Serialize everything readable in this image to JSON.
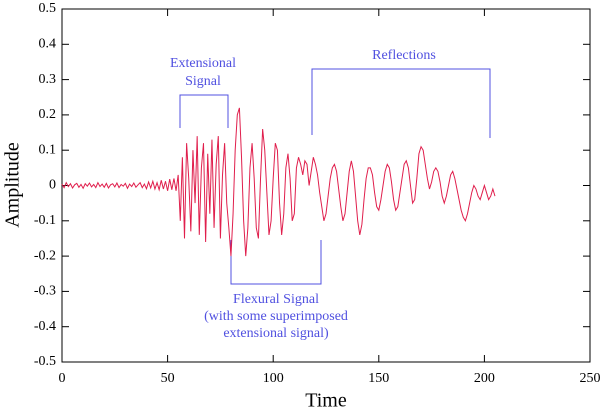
{
  "chart_data": {
    "type": "line",
    "xlabel": "Time",
    "ylabel": "Amplitude",
    "xlim": [
      0,
      250
    ],
    "xticks": [
      0,
      50,
      100,
      150,
      200,
      250
    ],
    "ylim": [
      -0.5,
      0.5
    ],
    "yticks": [
      0.5,
      0.4,
      0.3,
      0.2,
      0.1,
      0,
      -0.1,
      -0.2,
      -0.3,
      -0.4,
      -0.5
    ],
    "annotations": [
      {
        "lines": [
          "Extensional",
          "Signal"
        ]
      },
      {
        "lines": [
          "Reflections"
        ]
      },
      {
        "lines": [
          "Flexural Signal",
          "(with some superimposed",
          "extensional signal)"
        ]
      }
    ],
    "series": [
      {
        "color": "#e01e4c",
        "x": [
          0,
          1,
          2,
          3,
          4,
          5,
          6,
          7,
          8,
          9,
          10,
          11,
          12,
          13,
          14,
          15,
          16,
          17,
          18,
          19,
          20,
          21,
          22,
          23,
          24,
          25,
          26,
          27,
          28,
          29,
          30,
          31,
          32,
          33,
          34,
          35,
          36,
          37,
          38,
          39,
          40,
          41,
          42,
          43,
          44,
          45,
          46,
          47,
          48,
          49,
          50,
          51,
          52,
          53,
          54,
          55,
          56,
          57,
          58,
          59,
          60,
          61,
          62,
          63,
          64,
          65,
          66,
          67,
          68,
          69,
          70,
          71,
          72,
          73,
          74,
          75,
          76,
          77,
          78,
          79,
          80,
          81,
          82,
          83,
          84,
          85,
          86,
          87,
          88,
          89,
          90,
          91,
          92,
          93,
          94,
          95,
          96,
          97,
          98,
          99,
          100,
          101,
          102,
          103,
          104,
          105,
          106,
          107,
          108,
          109,
          110,
          111,
          112,
          113,
          114,
          115,
          116,
          117,
          118,
          119,
          120,
          121,
          122,
          123,
          124,
          125,
          126,
          127,
          128,
          129,
          130,
          131,
          132,
          133,
          134,
          135,
          136,
          137,
          138,
          139,
          140,
          141,
          142,
          143,
          144,
          145,
          146,
          147,
          148,
          149,
          150,
          151,
          152,
          153,
          154,
          155,
          156,
          157,
          158,
          159,
          160,
          161,
          162,
          163,
          164,
          165,
          166,
          167,
          168,
          169,
          170,
          171,
          172,
          173,
          174,
          175,
          176,
          177,
          178,
          179,
          180,
          181,
          182,
          183,
          184,
          185,
          186,
          187,
          188,
          189,
          190,
          191,
          192,
          193,
          194,
          195,
          196,
          197,
          198,
          199,
          200,
          201,
          202,
          203,
          204,
          205
        ],
        "values": [
          0.004,
          -0.006,
          0.008,
          -0.003,
          0.005,
          -0.007,
          0.002,
          0.006,
          -0.005,
          0.003,
          -0.008,
          0.005,
          -0.002,
          0.007,
          -0.004,
          0.003,
          -0.006,
          0.008,
          -0.003,
          0.004,
          -0.005,
          0.006,
          -0.007,
          0.002,
          0.005,
          -0.004,
          0.007,
          -0.006,
          0.003,
          -0.002,
          0.006,
          -0.008,
          0.004,
          -0.003,
          0.007,
          -0.005,
          0.002,
          0.008,
          -0.006,
          0.004,
          -0.009,
          0.01,
          -0.007,
          0.012,
          -0.01,
          0.008,
          -0.012,
          0.015,
          -0.01,
          0.012,
          -0.015,
          0.018,
          -0.012,
          0.02,
          -0.015,
          0.03,
          -0.1,
          0.08,
          -0.15,
          0.12,
          0.02,
          -0.13,
          0.1,
          -0.05,
          0.14,
          -0.14,
          0.05,
          0.12,
          -0.16,
          0.09,
          -0.08,
          0.13,
          -0.12,
          0.06,
          0.14,
          -0.15,
          0.03,
          0.12,
          -0.05,
          -0.12,
          -0.2,
          -0.08,
          0.1,
          0.2,
          0.22,
          0.08,
          -0.1,
          -0.2,
          -0.12,
          0.05,
          0.12,
          0.02,
          -0.12,
          -0.15,
          0.02,
          0.16,
          0.1,
          -0.02,
          -0.14,
          -0.1,
          0.02,
          0.12,
          0.1,
          -0.05,
          -0.14,
          -0.08,
          0.05,
          0.09,
          0.02,
          -0.1,
          -0.08,
          0.05,
          0.08,
          0.06,
          0.03,
          0.07,
          0.06,
          0.0,
          0.04,
          0.08,
          0.06,
          0.03,
          -0.02,
          -0.06,
          -0.1,
          -0.08,
          -0.03,
          0.02,
          0.05,
          0.06,
          0.04,
          -0.01,
          -0.06,
          -0.1,
          -0.08,
          -0.02,
          0.04,
          0.07,
          0.04,
          -0.03,
          -0.1,
          -0.14,
          -0.11,
          -0.04,
          0.02,
          0.05,
          0.05,
          0.03,
          -0.02,
          -0.06,
          -0.07,
          -0.04,
          0.0,
          0.04,
          0.06,
          0.05,
          0.01,
          -0.04,
          -0.07,
          -0.06,
          -0.02,
          0.02,
          0.06,
          0.07,
          0.05,
          0.0,
          -0.05,
          -0.04,
          0.02,
          0.09,
          0.11,
          0.1,
          0.06,
          0.02,
          -0.01,
          0.01,
          0.04,
          0.05,
          0.04,
          0.01,
          -0.03,
          -0.05,
          -0.03,
          0.0,
          0.03,
          0.04,
          0.02,
          -0.01,
          -0.04,
          -0.07,
          -0.09,
          -0.1,
          -0.08,
          -0.05,
          -0.02,
          0.0,
          -0.01,
          -0.03,
          -0.04,
          -0.02,
          0.0,
          -0.02,
          -0.04,
          -0.03,
          -0.01,
          -0.03
        ]
      }
    ]
  }
}
